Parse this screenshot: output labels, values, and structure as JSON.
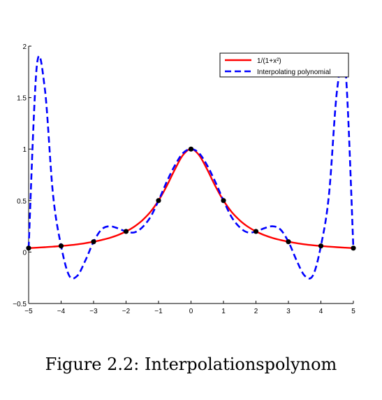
{
  "caption": "Figure 2.2: Interpolationspolynom",
  "chart_data": {
    "type": "line",
    "title": "",
    "xlabel": "",
    "ylabel": "",
    "xlim": [
      -5,
      5
    ],
    "ylim": [
      -0.5,
      2
    ],
    "x_ticks": [
      -5,
      -4,
      -3,
      -2,
      -1,
      0,
      1,
      2,
      3,
      4,
      5
    ],
    "x_tick_labels": [
      "−5",
      "−4",
      "−3",
      "−2",
      "−1",
      "0",
      "1",
      "2",
      "3",
      "4",
      "5"
    ],
    "y_ticks": [
      -0.5,
      0,
      0.5,
      1,
      1.5,
      2
    ],
    "y_tick_labels": [
      "−0.5",
      "0",
      "0.5",
      "1",
      "1.5",
      "2"
    ],
    "grid": false,
    "legend_position": "top-right",
    "series": [
      {
        "name": "1/(1+x²)",
        "style": "solid",
        "color": "#ff0000",
        "x": [
          -5,
          -4.75,
          -4.5,
          -4.25,
          -4,
          -3.75,
          -3.5,
          -3.25,
          -3,
          -2.75,
          -2.5,
          -2.25,
          -2,
          -1.75,
          -1.5,
          -1.25,
          -1,
          -0.75,
          -0.5,
          -0.25,
          0,
          0.25,
          0.5,
          0.75,
          1,
          1.25,
          1.5,
          1.75,
          2,
          2.25,
          2.5,
          2.75,
          3,
          3.25,
          3.5,
          3.75,
          4,
          4.25,
          4.5,
          4.75,
          5
        ],
        "y": [
          0.038,
          0.042,
          0.047,
          0.052,
          0.059,
          0.066,
          0.075,
          0.086,
          0.1,
          0.117,
          0.138,
          0.165,
          0.2,
          0.246,
          0.308,
          0.39,
          0.5,
          0.64,
          0.8,
          0.941,
          1,
          0.941,
          0.8,
          0.64,
          0.5,
          0.39,
          0.308,
          0.246,
          0.2,
          0.165,
          0.138,
          0.117,
          0.1,
          0.086,
          0.075,
          0.066,
          0.059,
          0.052,
          0.047,
          0.042,
          0.038
        ]
      },
      {
        "name": "Interpolating polynomial",
        "style": "dashed",
        "color": "#0000ff",
        "x": [
          -5,
          -4.75,
          -4.5,
          -4.25,
          -4,
          -3.75,
          -3.5,
          -3.25,
          -3,
          -2.75,
          -2.5,
          -2.25,
          -2,
          -1.75,
          -1.5,
          -1.25,
          -1,
          -0.75,
          -0.5,
          -0.25,
          0,
          0.25,
          0.5,
          0.75,
          1,
          1.25,
          1.5,
          1.75,
          2,
          2.25,
          2.5,
          2.75,
          3,
          3.25,
          3.5,
          3.75,
          4,
          4.25,
          4.5,
          4.75,
          5
        ],
        "y": [
          0.038,
          1.8,
          1.58,
          0.56,
          0.059,
          -0.23,
          -0.23,
          -0.08,
          0.1,
          0.22,
          0.25,
          0.23,
          0.2,
          0.19,
          0.24,
          0.34,
          0.5,
          0.68,
          0.84,
          0.96,
          1,
          0.96,
          0.84,
          0.68,
          0.5,
          0.34,
          0.24,
          0.19,
          0.2,
          0.23,
          0.25,
          0.22,
          0.1,
          -0.08,
          -0.23,
          -0.23,
          0.059,
          0.56,
          1.58,
          1.8,
          0.038
        ]
      }
    ],
    "markers": {
      "color": "#000000",
      "x": [
        -5,
        -4,
        -3,
        -2,
        -1,
        0,
        1,
        2,
        3,
        4,
        5
      ],
      "y": [
        0.038,
        0.059,
        0.1,
        0.2,
        0.5,
        1,
        0.5,
        0.2,
        0.1,
        0.059,
        0.038
      ]
    }
  }
}
